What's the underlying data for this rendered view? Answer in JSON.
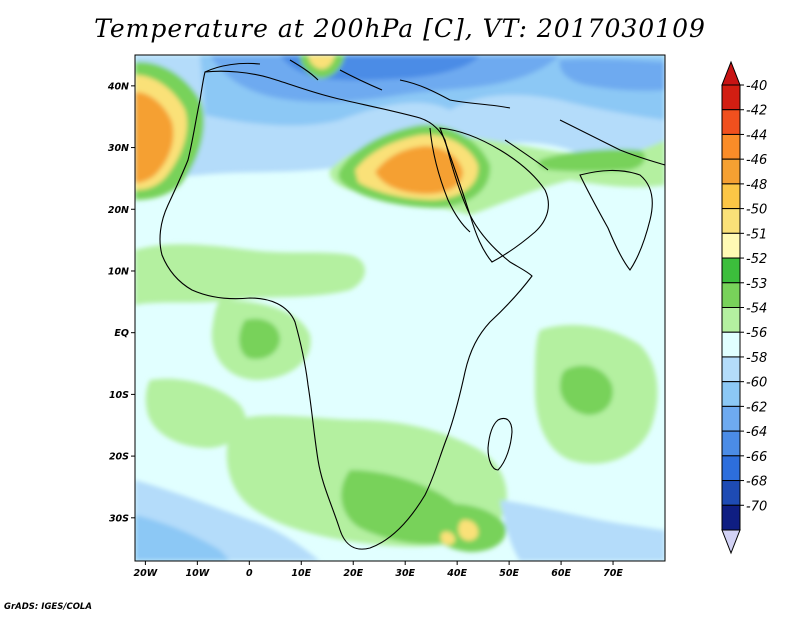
{
  "title": "Temperature at 200hPa [C], VT: 2017030109",
  "credit": "GrADS: IGES/COLA",
  "lon_ticks": [
    "20W",
    "10W",
    "0",
    "10E",
    "20E",
    "30E",
    "40E",
    "50E",
    "60E",
    "70E"
  ],
  "lat_ticks": [
    "40N",
    "30N",
    "20N",
    "10N",
    "EQ",
    "10S",
    "20S",
    "30S"
  ],
  "colorbar": {
    "levels": [
      "-40",
      "-42",
      "-44",
      "-46",
      "-48",
      "-50",
      "-51",
      "-52",
      "-53",
      "-54",
      "-56",
      "-58",
      "-60",
      "-62",
      "-64",
      "-66",
      "-68",
      "-70"
    ],
    "colors": [
      "#d21e12",
      "#f0501e",
      "#fa8c28",
      "#f5a032",
      "#fcc646",
      "#fae178",
      "#fffab4",
      "#3cbe3c",
      "#78d25a",
      "#b4f0a0",
      "#e1ffff",
      "#b4dcfa",
      "#8cc8f5",
      "#6eaaf0",
      "#4b8ce6",
      "#2d6edc",
      "#1e4bb4",
      "#0f1e82"
    ],
    "top_arrow_color": "#c81414",
    "bottom_arrow_color": "#d2d2f5"
  },
  "map": {
    "background_color": "#e1ffff",
    "coastline_color": "#000000"
  }
}
